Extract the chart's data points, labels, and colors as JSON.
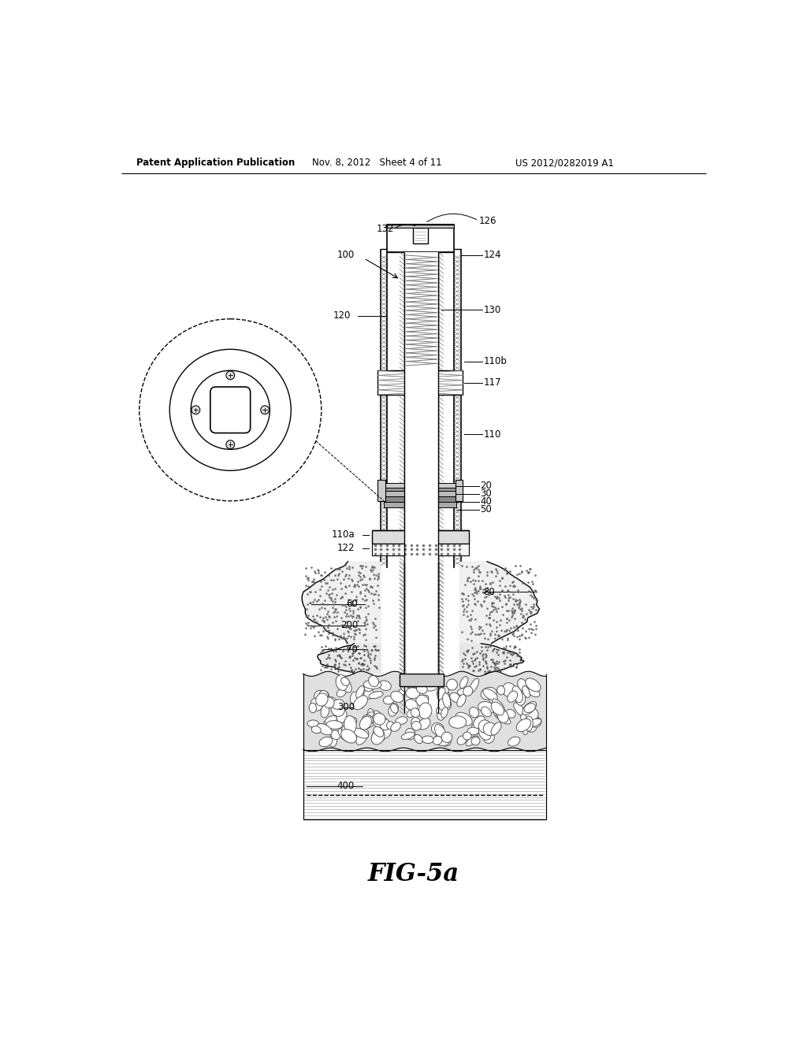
{
  "bg_color": "#ffffff",
  "header_left": "Patent Application Publication",
  "header_mid": "Nov. 8, 2012   Sheet 4 of 11",
  "header_right": "US 2012/0282019 A1",
  "fig_label": "FIG-5a"
}
